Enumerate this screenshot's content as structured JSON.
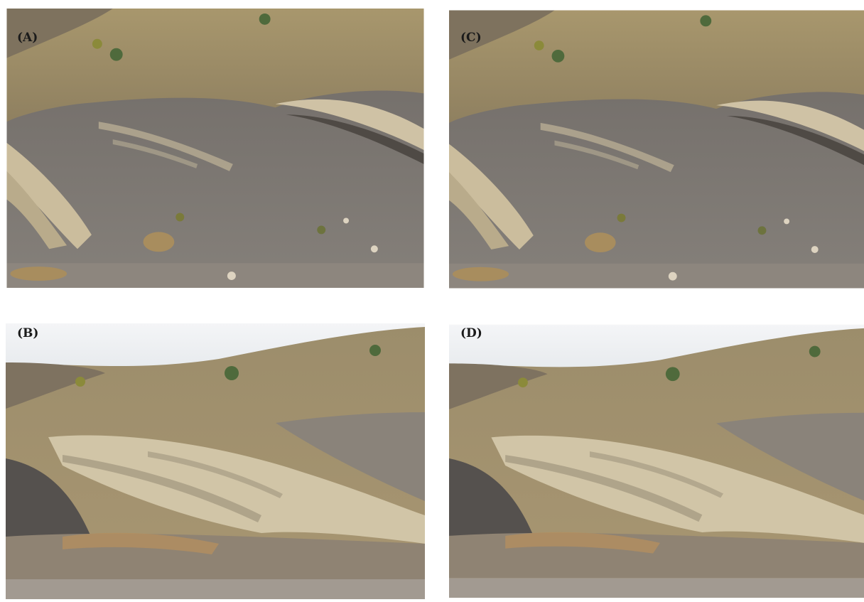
{
  "panels": [
    {
      "label": "(A)"
    },
    {
      "label": "(B)"
    },
    {
      "label": "(C)"
    },
    {
      "label": "(D)"
    }
  ]
}
